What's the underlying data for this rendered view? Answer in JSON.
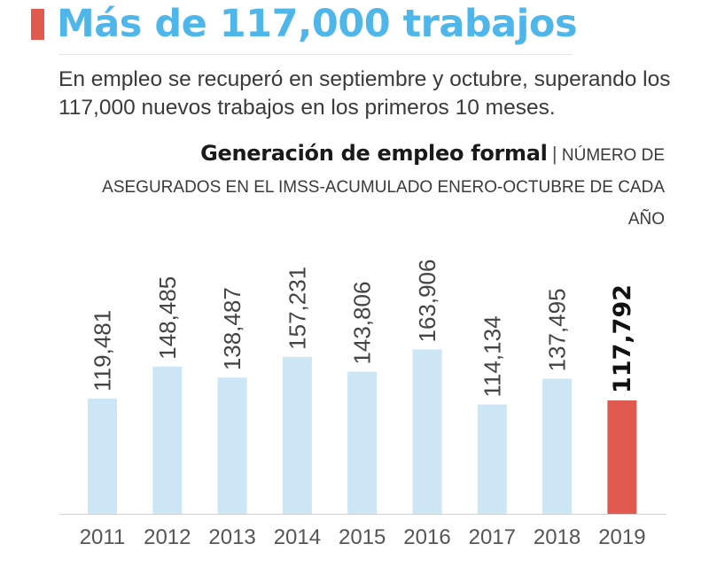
{
  "header": {
    "title": "Más de 117,000 trabajos",
    "subtitle": "En empleo se recuperó en septiembre y octubre, superando los 117,000 nuevos trabajos en los primeros 10 meses."
  },
  "chart_header": {
    "title": "Generación de empleo formal",
    "separator": "|",
    "description": "NÚMERO DE ASEGURADOS EN EL IMSS-ACUMULADO ENERO-OCTUBRE DE CADA AÑO"
  },
  "colors": {
    "title": "#4fb6ea",
    "marker": "#e05a50",
    "bar": "#cde6f6",
    "highlight_bar": "#e05a50",
    "axis": "#d0d0d0"
  },
  "chart_data": {
    "type": "bar",
    "title": "Generación de empleo formal",
    "subtitle": "NÚMERO DE ASEGURADOS EN EL IMSS-ACUMULADO ENERO-OCTUBRE DE CADA AÑO",
    "xlabel": "",
    "ylabel": "",
    "categories": [
      "2011",
      "2012",
      "2013",
      "2014",
      "2015",
      "2016",
      "2017",
      "2018",
      "2019"
    ],
    "values": [
      119481,
      148485,
      138487,
      157231,
      143806,
      163906,
      114134,
      137495,
      117792
    ],
    "data_labels": [
      "119,481",
      "148,485",
      "138,487",
      "157,231",
      "143,806",
      "163,906",
      "114,134",
      "137,495",
      "117,792"
    ],
    "highlight": "2019",
    "ylim": [
      15000,
      180000
    ],
    "grid": false,
    "legend": "none"
  }
}
